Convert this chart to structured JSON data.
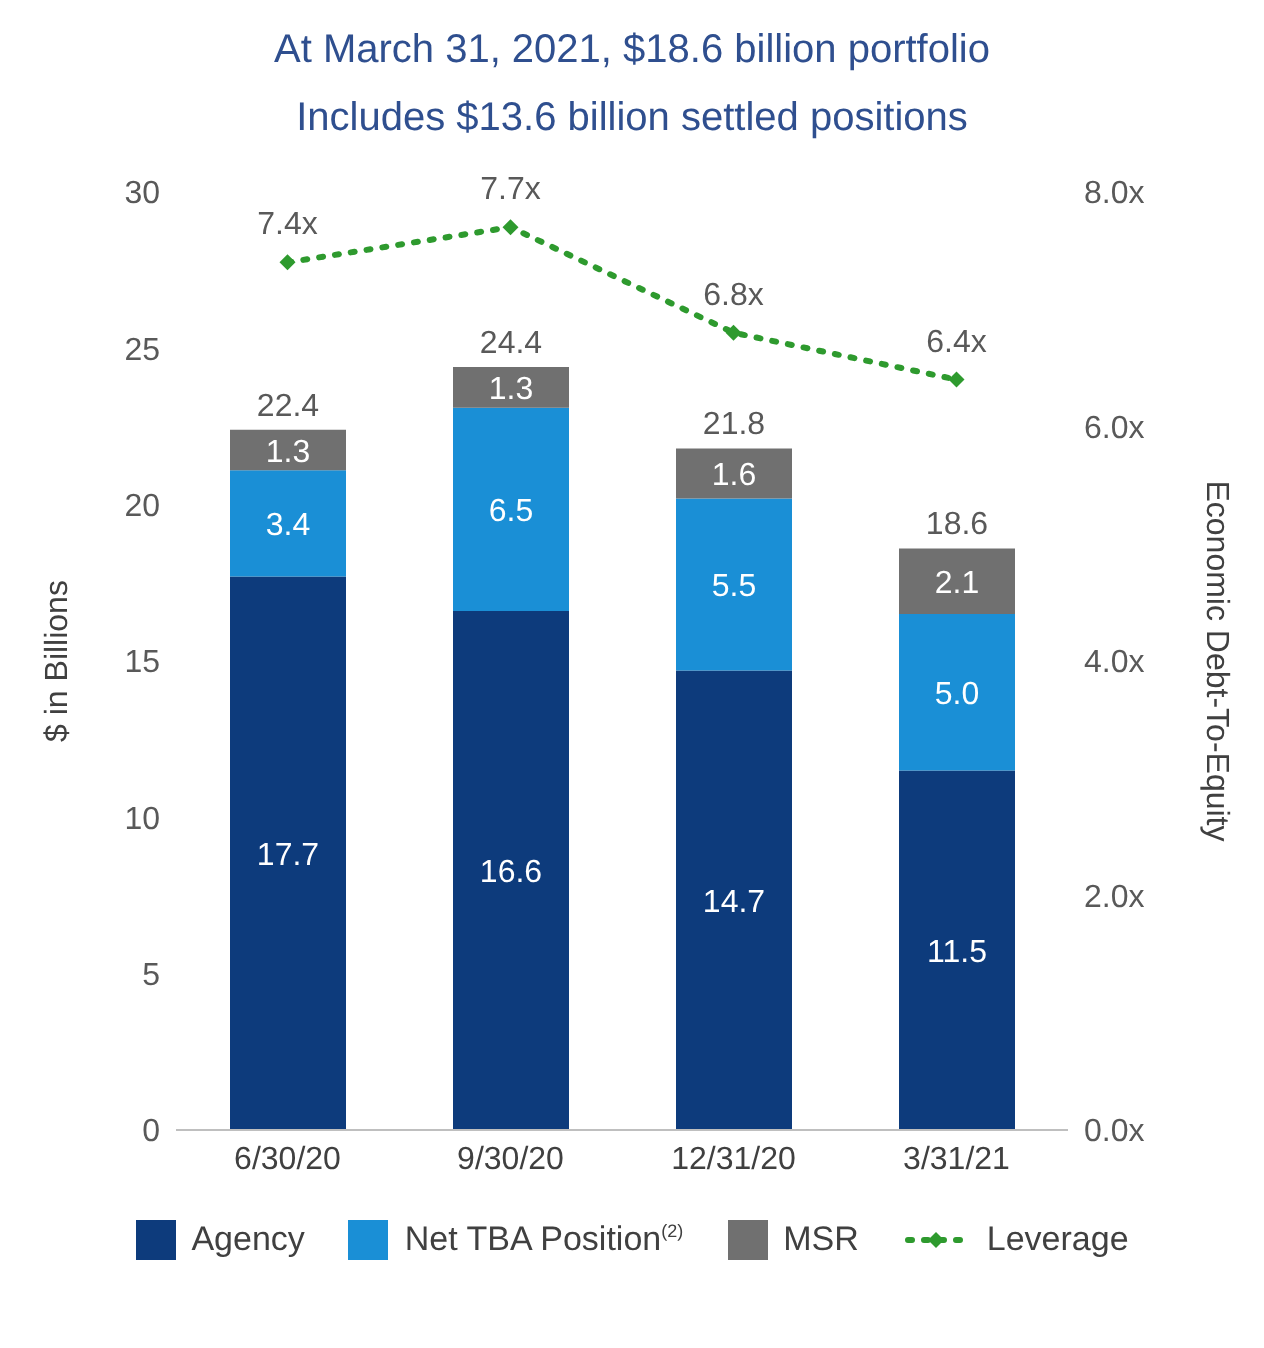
{
  "chart_data": {
    "type": "bar",
    "title": "At March 31, 2021, $18.6 billion portfolio",
    "subtitle": "Includes $13.6 billion settled positions",
    "ylabel": "$ in Billions",
    "y2label": "Economic Debt-To-Equity",
    "categories": [
      "6/30/20",
      "9/30/20",
      "12/31/20",
      "3/31/21"
    ],
    "stacked": true,
    "series": [
      {
        "name": "Agency",
        "color": "#0d3b7c",
        "values": [
          17.7,
          16.6,
          14.7,
          11.5
        ],
        "value_labels": [
          "17.7",
          "16.6",
          "14.7",
          "11.5"
        ]
      },
      {
        "name": "Net TBA Position$^{(2)}$",
        "color": "#1a8fd6",
        "values": [
          3.4,
          6.5,
          5.5,
          5.0
        ],
        "value_labels": [
          "3.4",
          "6.5",
          "5.5",
          "5.0"
        ]
      },
      {
        "name": "MSR",
        "color": "#707070",
        "values": [
          1.3,
          1.3,
          1.6,
          2.1
        ],
        "value_labels": [
          "1.3",
          "1.3",
          "1.6",
          "2.1"
        ]
      },
      {
        "name": "Leverage",
        "type": "line",
        "axis": "y2",
        "color": "#2e9a2e",
        "marker": "diamond",
        "line_style": "dotted",
        "values": [
          7.4,
          7.7,
          6.8,
          6.4
        ],
        "value_labels": [
          "7.4x",
          "7.7x",
          "6.8x",
          "6.4x"
        ]
      }
    ],
    "totals": [
      "22.4",
      "24.4",
      "21.8",
      "18.6"
    ],
    "ylim": [
      0,
      30
    ],
    "yticks": [
      0,
      5,
      10,
      15,
      20,
      25,
      30
    ],
    "y2lim": [
      0,
      8
    ],
    "y2ticks": [
      {
        "value": 0,
        "label": "0.0x"
      },
      {
        "value": 2,
        "label": "2.0x"
      },
      {
        "value": 4,
        "label": "4.0x"
      },
      {
        "value": 6,
        "label": "6.0x"
      },
      {
        "value": 8,
        "label": "8.0x"
      }
    ],
    "grid": false,
    "legend": "bottom"
  }
}
